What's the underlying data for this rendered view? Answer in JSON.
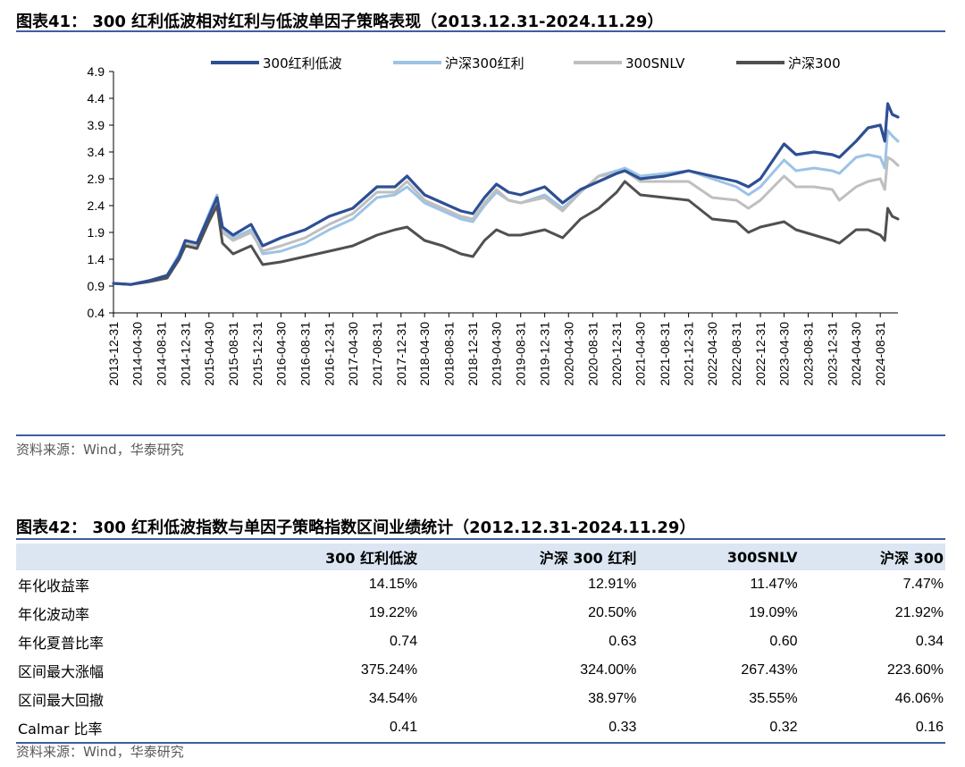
{
  "fig41": {
    "title": "图表41： 300 红利低波相对红利与低波单因子策略表现（2013.12.31-2024.11.29）",
    "source": "资料来源：Wind，华泰研究"
  },
  "fig42": {
    "title": "图表42： 300 红利低波指数与单因子策略指数区间业绩统计（2012.12.31-2024.11.29）",
    "source": "资料来源：Wind，华泰研究",
    "columns": [
      "",
      "300 红利低波",
      "沪深 300 红利",
      "300SNLV",
      "沪深 300"
    ],
    "rows": [
      [
        "年化收益率",
        "14.15%",
        "12.91%",
        "11.47%",
        "7.47%"
      ],
      [
        "年化波动率",
        "19.22%",
        "20.50%",
        "19.09%",
        "21.92%"
      ],
      [
        "年化夏普比率",
        "0.74",
        "0.63",
        "0.60",
        "0.34"
      ],
      [
        "区间最大涨幅",
        "375.24%",
        "324.00%",
        "267.43%",
        "223.60%"
      ],
      [
        "区间最大回撤",
        "34.54%",
        "38.97%",
        "35.55%",
        "46.06%"
      ],
      [
        "Calmar 比率",
        "0.41",
        "0.33",
        "0.32",
        "0.16"
      ]
    ]
  },
  "chart_data": {
    "type": "line",
    "ylim": [
      0.4,
      4.9
    ],
    "yticks": [
      0.4,
      0.9,
      1.4,
      1.9,
      2.4,
      2.9,
      3.4,
      3.9,
      4.4,
      4.9
    ],
    "yticklabels": [
      "0.4",
      "0.9",
      "1.4",
      "1.9",
      "2.4",
      "2.9",
      "3.4",
      "3.9",
      "4.4",
      "4.9"
    ],
    "xlim": [
      "2013-12-31",
      "2024-11-29"
    ],
    "xticks": [
      "2013-12-31",
      "2014-04-30",
      "2014-08-31",
      "2014-12-31",
      "2015-04-30",
      "2015-08-31",
      "2015-12-31",
      "2016-04-30",
      "2016-08-31",
      "2016-12-31",
      "2017-04-30",
      "2017-08-31",
      "2017-12-31",
      "2018-04-30",
      "2018-08-31",
      "2018-12-31",
      "2019-04-30",
      "2019-08-31",
      "2019-12-31",
      "2020-04-30",
      "2020-08-31",
      "2020-12-31",
      "2021-04-30",
      "2021-08-31",
      "2021-12-31",
      "2022-04-30",
      "2022-08-31",
      "2022-12-31",
      "2023-04-30",
      "2023-08-31",
      "2023-12-31",
      "2024-04-30",
      "2024-08-31"
    ],
    "legend_position": "top",
    "grid": false,
    "x": [
      "2013-12-31",
      "2014-03-31",
      "2014-06-30",
      "2014-09-30",
      "2014-11-30",
      "2014-12-31",
      "2015-02-28",
      "2015-04-30",
      "2015-06-10",
      "2015-07-08",
      "2015-08-31",
      "2015-11-30",
      "2016-01-28",
      "2016-04-30",
      "2016-08-31",
      "2016-12-31",
      "2017-04-30",
      "2017-08-31",
      "2017-11-30",
      "2018-01-31",
      "2018-04-30",
      "2018-07-31",
      "2018-10-31",
      "2018-12-31",
      "2019-02-28",
      "2019-04-30",
      "2019-06-30",
      "2019-08-31",
      "2019-12-31",
      "2020-03-31",
      "2020-06-30",
      "2020-09-30",
      "2020-12-31",
      "2021-02-10",
      "2021-04-30",
      "2021-08-31",
      "2021-12-31",
      "2022-04-30",
      "2022-08-31",
      "2022-10-31",
      "2022-12-31",
      "2023-04-30",
      "2023-06-30",
      "2023-09-30",
      "2023-12-31",
      "2024-02-05",
      "2024-04-30",
      "2024-06-30",
      "2024-08-31",
      "2024-09-23",
      "2024-10-08",
      "2024-10-31",
      "2024-11-29"
    ],
    "series": [
      {
        "name": "300红利低波",
        "color": "#2e4f94",
        "width": 3.2,
        "values": [
          0.95,
          0.93,
          1.0,
          1.1,
          1.45,
          1.75,
          1.7,
          2.2,
          2.55,
          2.0,
          1.85,
          2.05,
          1.65,
          1.8,
          1.95,
          2.2,
          2.35,
          2.75,
          2.75,
          2.95,
          2.6,
          2.45,
          2.3,
          2.25,
          2.55,
          2.8,
          2.65,
          2.6,
          2.75,
          2.45,
          2.7,
          2.85,
          3.0,
          3.05,
          2.9,
          2.95,
          3.05,
          2.95,
          2.85,
          2.75,
          2.9,
          3.55,
          3.35,
          3.4,
          3.35,
          3.3,
          3.6,
          3.85,
          3.9,
          3.6,
          4.3,
          4.1,
          4.05
        ]
      },
      {
        "name": "沪深300红利",
        "color": "#9dc3e6",
        "width": 3,
        "values": [
          0.95,
          0.93,
          1.0,
          1.1,
          1.5,
          1.75,
          1.7,
          2.25,
          2.6,
          1.95,
          1.8,
          1.95,
          1.5,
          1.55,
          1.7,
          1.95,
          2.15,
          2.55,
          2.6,
          2.75,
          2.45,
          2.3,
          2.15,
          2.1,
          2.4,
          2.65,
          2.5,
          2.45,
          2.6,
          2.35,
          2.65,
          2.95,
          3.05,
          3.1,
          2.95,
          3.0,
          3.05,
          2.9,
          2.75,
          2.6,
          2.75,
          3.25,
          3.05,
          3.1,
          3.05,
          3.0,
          3.3,
          3.35,
          3.3,
          3.1,
          3.8,
          3.7,
          3.6
        ]
      },
      {
        "name": "300SNLV",
        "color": "#bfbfbf",
        "width": 3,
        "values": [
          0.95,
          0.93,
          1.0,
          1.1,
          1.45,
          1.7,
          1.65,
          2.15,
          2.5,
          1.9,
          1.75,
          1.9,
          1.55,
          1.65,
          1.8,
          2.05,
          2.25,
          2.65,
          2.65,
          2.85,
          2.5,
          2.35,
          2.2,
          2.15,
          2.45,
          2.7,
          2.5,
          2.45,
          2.55,
          2.3,
          2.65,
          2.95,
          3.0,
          3.05,
          2.85,
          2.85,
          2.85,
          2.55,
          2.5,
          2.35,
          2.5,
          2.95,
          2.75,
          2.75,
          2.7,
          2.5,
          2.75,
          2.85,
          2.9,
          2.7,
          3.3,
          3.25,
          3.15
        ]
      },
      {
        "name": "沪深300",
        "color": "#505050",
        "width": 3,
        "values": [
          0.95,
          0.93,
          0.98,
          1.05,
          1.4,
          1.65,
          1.6,
          2.1,
          2.4,
          1.7,
          1.5,
          1.65,
          1.3,
          1.35,
          1.45,
          1.55,
          1.65,
          1.85,
          1.95,
          2.0,
          1.75,
          1.65,
          1.5,
          1.45,
          1.75,
          1.95,
          1.85,
          1.85,
          1.95,
          1.8,
          2.15,
          2.35,
          2.65,
          2.85,
          2.6,
          2.55,
          2.5,
          2.15,
          2.1,
          1.9,
          2.0,
          2.1,
          1.95,
          1.85,
          1.75,
          1.7,
          1.95,
          1.95,
          1.85,
          1.75,
          2.35,
          2.2,
          2.15
        ]
      }
    ]
  }
}
